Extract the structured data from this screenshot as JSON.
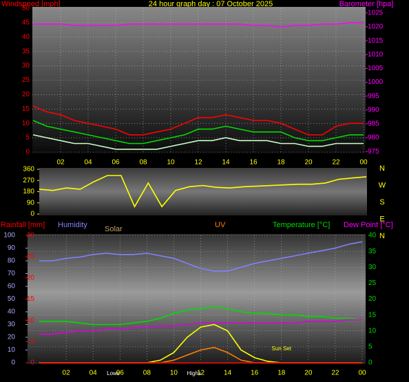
{
  "chart_data": [
    {
      "type": "line",
      "title": "24 hour graph day : 07 October 2025",
      "y_label": "Windspeed [mph]",
      "y2_label": "Barometer [hpa]",
      "x": [
        0,
        1,
        2,
        3,
        4,
        5,
        6,
        7,
        8,
        9,
        10,
        11,
        12,
        13,
        14,
        15,
        16,
        17,
        18,
        19,
        20,
        21,
        22,
        23,
        24
      ],
      "xlim": [
        0,
        24
      ],
      "xticks": [
        {
          "value": 2,
          "label": "02"
        },
        {
          "value": 4,
          "label": "04"
        },
        {
          "value": 6,
          "label": "06"
        },
        {
          "value": 8,
          "label": "08"
        },
        10,
        12,
        14,
        16,
        18,
        20,
        22,
        {
          "value": 24,
          "label": "00"
        }
      ],
      "ylim": [
        0,
        50
      ],
      "yticks": [
        0,
        5,
        10,
        15,
        20,
        25,
        30,
        35,
        40,
        45,
        50
      ],
      "y2lim": [
        974.8,
        1026.7
      ],
      "y2ticks": [
        975,
        980,
        985,
        990,
        995,
        1000,
        1005,
        1010,
        1015,
        1020,
        1025
      ],
      "grid": true,
      "series": [
        {
          "color": "#ff0000",
          "values": [
            16,
            14,
            13,
            11,
            10,
            9,
            8,
            6,
            6,
            7,
            8,
            10,
            12,
            12,
            13,
            12,
            11,
            11,
            10,
            8,
            6,
            6,
            9,
            10,
            10
          ]
        },
        {
          "color": "#00dd00",
          "values": [
            11,
            9,
            8,
            7,
            6,
            5,
            4,
            3,
            3,
            4,
            5,
            6,
            8,
            8,
            9,
            8,
            7,
            7,
            7,
            5,
            4,
            4,
            5,
            6,
            6
          ]
        },
        {
          "color": "#ccffcc",
          "values": [
            6,
            5,
            4,
            3,
            3,
            2,
            1,
            1,
            1,
            1,
            2,
            3,
            4,
            4,
            5,
            4,
            4,
            4,
            3,
            3,
            2,
            2,
            3,
            3,
            3
          ]
        },
        {
          "color": "#ff00ff",
          "axis": "y2",
          "values": [
            1021,
            1021,
            1021,
            1020.5,
            1020.5,
            1020.5,
            1020.5,
            1021,
            1021,
            1021,
            1021,
            1021,
            1021,
            1021,
            1021,
            1021,
            1020.5,
            1020.5,
            1020,
            1020.5,
            1020.5,
            1021,
            1021,
            1021.5,
            1021.5
          ]
        }
      ]
    },
    {
      "type": "line",
      "x": [
        0,
        1,
        2,
        3,
        4,
        5,
        6,
        7,
        8,
        9,
        10,
        11,
        12,
        13,
        14,
        15,
        16,
        17,
        18,
        19,
        20,
        21,
        22,
        23,
        24
      ],
      "xlim": [
        0,
        24
      ],
      "ylim": [
        0,
        360
      ],
      "yticks": [
        0,
        90,
        180,
        270,
        360
      ],
      "compass_labels": [
        "N",
        "W",
        "S",
        "E",
        "N"
      ],
      "series": [
        {
          "color": "#ffff00",
          "values": [
            200,
            190,
            210,
            200,
            260,
            310,
            310,
            60,
            250,
            60,
            190,
            220,
            230,
            215,
            210,
            220,
            225,
            230,
            235,
            240,
            240,
            250,
            280,
            290,
            300
          ]
        }
      ]
    },
    {
      "type": "line",
      "x": [
        0,
        1,
        2,
        3,
        4,
        5,
        6,
        7,
        8,
        9,
        10,
        11,
        12,
        13,
        14,
        15,
        16,
        17,
        18,
        19,
        20,
        21,
        22,
        23,
        24
      ],
      "xlim": [
        0,
        24
      ],
      "xticks": [
        {
          "value": 2,
          "label": "02"
        },
        {
          "value": 4,
          "label": "04"
        },
        {
          "value": 6,
          "label": "06"
        },
        {
          "value": 8,
          "label": "08"
        },
        10,
        12,
        14,
        16,
        18,
        20,
        22,
        {
          "value": 24,
          "label": "00"
        }
      ],
      "rain_label": "Rainfall [mm]",
      "y_label": "Humidity",
      "solar_label": "Solar",
      "uv_label": "UV",
      "y2_label": "Temperature [°C]",
      "dew_label": "Dew Point [°C]",
      "ylim": [
        0,
        100
      ],
      "yticks": [
        0,
        10,
        20,
        30,
        40,
        50,
        60,
        70,
        80,
        90,
        100
      ],
      "rain_ylim": [
        0,
        30
      ],
      "rain_yticks": [
        0,
        5,
        10,
        15,
        20,
        25,
        30
      ],
      "y2lim": [
        0,
        40
      ],
      "y2ticks": [
        0,
        5,
        10,
        15,
        20,
        25,
        30,
        35,
        40
      ],
      "grid": true,
      "annotations": [
        {
          "text": "Lows",
          "x": 5.5
        },
        {
          "text": "Highs",
          "x": 11.5
        },
        {
          "text": "Sun Set",
          "x": 18
        }
      ],
      "series": [
        {
          "color": "#8080ff",
          "values": [
            80,
            80,
            82,
            83,
            85,
            86,
            85,
            85,
            86,
            84,
            82,
            78,
            74,
            72,
            72,
            75,
            78,
            80,
            82,
            84,
            86,
            88,
            90,
            93,
            95
          ]
        },
        {
          "color": "#ffff00",
          "values": [
            0,
            0,
            0,
            0,
            0,
            0,
            0,
            0,
            0,
            2,
            8,
            20,
            28,
            30,
            25,
            10,
            4,
            1,
            0,
            0,
            0,
            0,
            0,
            0,
            0
          ]
        },
        {
          "color": "#ff8000",
          "values": [
            0,
            0,
            0,
            0,
            0,
            0,
            0,
            0,
            0,
            0,
            2,
            6,
            10,
            12,
            8,
            2,
            0,
            0,
            0,
            0,
            0,
            0,
            0,
            0,
            0
          ]
        },
        {
          "color": "#ff0000",
          "axis": "rain",
          "values": [
            0,
            0,
            0,
            0,
            0,
            0,
            0,
            0,
            0,
            0,
            0,
            0,
            0,
            0,
            0,
            0,
            0,
            0,
            0,
            0,
            0,
            0,
            0,
            0,
            0
          ]
        },
        {
          "color": "#00dd00",
          "axis": "y2",
          "values": [
            13,
            13,
            13,
            12.5,
            12,
            12,
            12,
            12.5,
            13,
            14,
            15.5,
            16.5,
            17,
            17.5,
            17,
            16,
            15.5,
            15.5,
            15,
            15,
            14.5,
            14.5,
            14,
            14,
            13.5
          ]
        },
        {
          "color": "#dd00dd",
          "axis": "y2",
          "values": [
            9,
            9,
            9.5,
            10,
            10,
            10.5,
            10.5,
            11,
            11,
            11.5,
            11.5,
            12,
            12.5,
            12.5,
            12.5,
            12.5,
            12.5,
            12.5,
            12.5,
            12.5,
            13,
            13,
            13,
            13.5,
            13.5
          ]
        }
      ]
    }
  ]
}
